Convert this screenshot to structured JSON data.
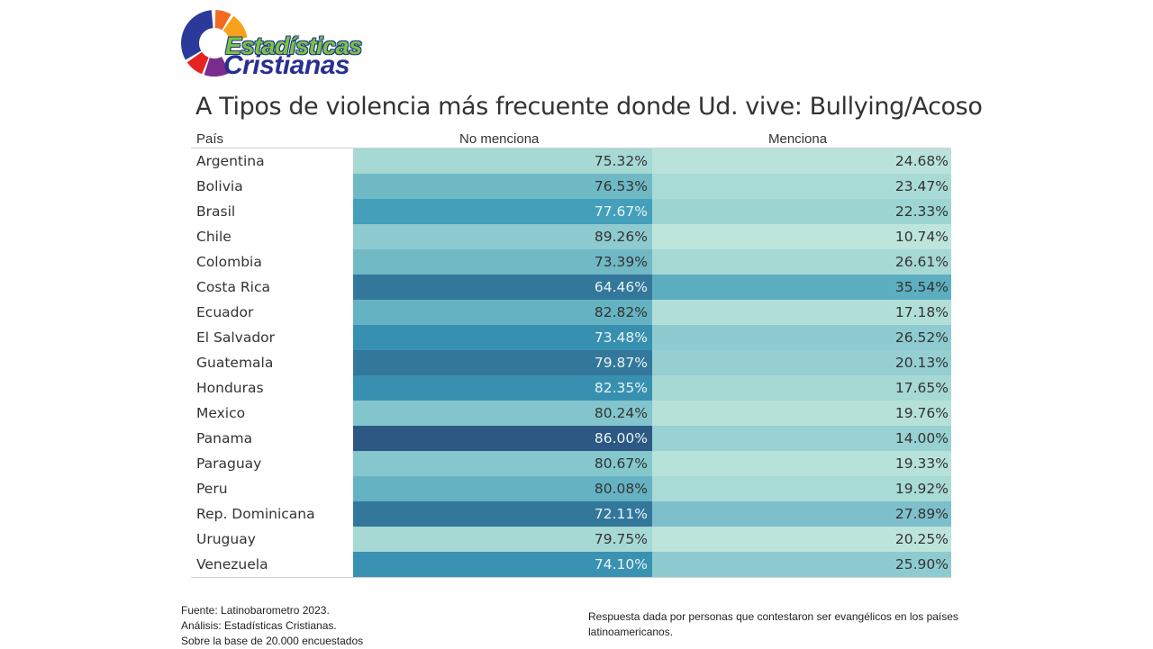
{
  "logo": {
    "line1": "Estadísticas",
    "line2": "Cristianas",
    "ring_colors": [
      "#2b3a9a",
      "#f26b21",
      "#f7a21b",
      "#e52421",
      "#7b2d8e"
    ]
  },
  "chart_data": {
    "type": "table",
    "title": "A Tipos de violencia más frecuente donde Ud. vive: Bullying/Acoso",
    "columns": [
      "País",
      "No menciona",
      "Menciona"
    ],
    "rows": [
      {
        "country": "Argentina",
        "no_menciona": 75.32,
        "menciona": 24.68
      },
      {
        "country": "Bolivia",
        "no_menciona": 76.53,
        "menciona": 23.47
      },
      {
        "country": "Brasil",
        "no_menciona": 77.67,
        "menciona": 22.33
      },
      {
        "country": "Chile",
        "no_menciona": 89.26,
        "menciona": 10.74
      },
      {
        "country": "Colombia",
        "no_menciona": 73.39,
        "menciona": 26.61
      },
      {
        "country": "Costa Rica",
        "no_menciona": 64.46,
        "menciona": 35.54
      },
      {
        "country": "Ecuador",
        "no_menciona": 82.82,
        "menciona": 17.18
      },
      {
        "country": "El Salvador",
        "no_menciona": 73.48,
        "menciona": 26.52
      },
      {
        "country": "Guatemala",
        "no_menciona": 79.87,
        "menciona": 20.13
      },
      {
        "country": "Honduras",
        "no_menciona": 82.35,
        "menciona": 17.65
      },
      {
        "country": "Mexico",
        "no_menciona": 80.24,
        "menciona": 19.76
      },
      {
        "country": "Panama",
        "no_menciona": 86.0,
        "menciona": 14.0
      },
      {
        "country": "Paraguay",
        "no_menciona": 80.67,
        "menciona": 19.33
      },
      {
        "country": "Peru",
        "no_menciona": 80.08,
        "menciona": 19.92
      },
      {
        "country": "Rep. Dominicana",
        "no_menciona": 72.11,
        "menciona": 27.89
      },
      {
        "country": "Uruguay",
        "no_menciona": 79.75,
        "menciona": 20.25
      },
      {
        "country": "Venezuela",
        "no_menciona": 74.1,
        "menciona": 25.9
      }
    ],
    "cell_colors": {
      "no_menciona": [
        "#a6d8d4",
        "#6fb9c5",
        "#44a0ba",
        "#8ecbd0",
        "#70b9c5",
        "#33789b",
        "#65b3c2",
        "#3890b0",
        "#33789b",
        "#3890b0",
        "#82c5cc",
        "#2c5883",
        "#84c7cd",
        "#65b3c2",
        "#33789b",
        "#a6d8d4",
        "#3a92b2"
      ],
      "menciona": [
        "#b9e3da",
        "#a9dbd6",
        "#9dd5d3",
        "#bde5db",
        "#a6d8d4",
        "#5daec0",
        "#b1dfd8",
        "#8ecbd0",
        "#95cfd1",
        "#a6d8d4",
        "#b5e1d9",
        "#98d1d2",
        "#b7e2da",
        "#a9dbd6",
        "#7dc0cb",
        "#bce4db",
        "#8ecbd0"
      ]
    },
    "text_colors": {
      "no_menciona": [
        "#333333",
        "#333333",
        "#e8f4f6",
        "#333333",
        "#333333",
        "#e8f4f6",
        "#333333",
        "#e8f4f6",
        "#e8f4f6",
        "#e8f4f6",
        "#333333",
        "#e8f4f6",
        "#333333",
        "#333333",
        "#e8f4f6",
        "#333333",
        "#e8f4f6"
      ],
      "menciona": "#333333"
    },
    "value_format": "percent_2dp"
  },
  "footer": {
    "left": [
      "Fuente: Latinobarometro 2023.",
      "Análisis: Estadísticas Cristianas.",
      "Sobre la base de 20.000 encuestados"
    ],
    "right": "Respuesta dada por personas que contestaron ser evangélicos en los países latinoamericanos."
  }
}
